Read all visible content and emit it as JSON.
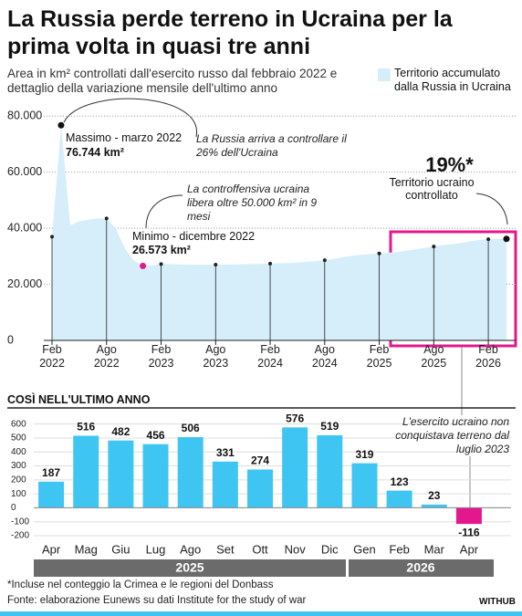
{
  "chart_data": [
    {
      "type": "area",
      "title": "La Russia perde terreno in Ucraina per la prima volta in quasi tre anni",
      "subtitle": "Area in km² controllati dall'esercito russo dal febbraio 2022 e dettaglio della variazione mensile dell'ultimo anno",
      "x": [
        "2022-02",
        "2022-03",
        "2022-04",
        "2022-05",
        "2022-06",
        "2022-07",
        "2022-08",
        "2022-09",
        "2022-10",
        "2022-11",
        "2022-12",
        "2023-01",
        "2023-02",
        "2023-03",
        "2023-04",
        "2023-05",
        "2023-06",
        "2023-07",
        "2023-08",
        "2023-09",
        "2023-10",
        "2023-11",
        "2023-12",
        "2024-01",
        "2024-02",
        "2024-03",
        "2024-04",
        "2024-05",
        "2024-06",
        "2024-07",
        "2024-08",
        "2024-09",
        "2024-10",
        "2024-11",
        "2024-12",
        "2025-01",
        "2025-02",
        "2025-03",
        "2025-04",
        "2025-05",
        "2025-06",
        "2025-07",
        "2025-08",
        "2025-09",
        "2025-10",
        "2025-11",
        "2025-12",
        "2026-01",
        "2026-02",
        "2026-03",
        "2026-04"
      ],
      "series": [
        {
          "name": "Territorio accumulato dalla Russia in Ucraina",
          "color": "#d5eefa",
          "values": [
            37000,
            76744,
            41000,
            42500,
            43000,
            43500,
            43500,
            40000,
            33000,
            28500,
            26573,
            26800,
            27200,
            27200,
            27100,
            27000,
            27000,
            27000,
            27000,
            27000,
            27100,
            27150,
            27200,
            27300,
            27400,
            27500,
            27600,
            27800,
            28000,
            28300,
            28600,
            29100,
            29700,
            30200,
            30500,
            30800,
            31000,
            31300,
            31500,
            32000,
            32500,
            33000,
            33500,
            34000,
            34300,
            34800,
            35300,
            35800,
            36100,
            36300,
            36200
          ],
          "value_labels": [
            null,
            "76.744 km²",
            null,
            null,
            null,
            null,
            null,
            null,
            null,
            null,
            "26.573 km²",
            null,
            null,
            null,
            null,
            null,
            null,
            null,
            null,
            null,
            null,
            null,
            null,
            null,
            null,
            null,
            null,
            null,
            null,
            null,
            null,
            null,
            null,
            null,
            null,
            null,
            null,
            null,
            null,
            null,
            null,
            null,
            null,
            null,
            null,
            null,
            null,
            null,
            null,
            null,
            null
          ]
        }
      ],
      "xlim": [
        "2022-02",
        "2026-04"
      ],
      "xticks": [
        {
          "value": "2022-02",
          "label": "Feb 2022"
        },
        {
          "value": "2022-08",
          "label": "Ago 2022"
        },
        {
          "value": "2023-02",
          "label": "Feb 2023"
        },
        {
          "value": "2023-08",
          "label": "Ago 2023"
        },
        {
          "value": "2024-02",
          "label": "Feb 2024"
        },
        {
          "value": "2024-08",
          "label": "Ago 2024"
        },
        {
          "value": "2025-02",
          "label": "Feb 2025"
        },
        {
          "value": "2025-08",
          "label": "Ago 2025"
        },
        {
          "value": "2026-02",
          "label": "Feb 2026"
        }
      ],
      "ylim": [
        0,
        83000
      ],
      "yticks": [
        0,
        {
          "value": 20000,
          "label": "20.000"
        },
        {
          "value": 40000,
          "label": "40.000"
        },
        {
          "value": 60000,
          "label": "60.000"
        },
        {
          "value": 80000,
          "label": "80.000"
        }
      ],
      "grid": true,
      "legend": "top-right",
      "annotations": [
        "Massimo - marzo 2022",
        "La Russia arriva a controllare il 26% dell'Ucraina",
        "La controffensiva ucraina libera oltre 50.000 km² in 9 mesi",
        "Minimo - dicembre 2022",
        "19%*",
        "Territorio ucraino controllato"
      ]
    },
    {
      "type": "bar",
      "title": "COSÌ NELL'ULTIMO ANNO",
      "categories": [
        "Apr",
        "Mag",
        "Giu",
        "Lug",
        "Ago",
        "Set",
        "Ott",
        "Nov",
        "Dic",
        "Gen",
        "Feb",
        "Mar",
        "Apr"
      ],
      "values": [
        187,
        516,
        482,
        456,
        506,
        331,
        274,
        576,
        519,
        319,
        123,
        23,
        -116
      ],
      "colors": [
        "#3ec5f2",
        "#3ec5f2",
        "#3ec5f2",
        "#3ec5f2",
        "#3ec5f2",
        "#3ec5f2",
        "#3ec5f2",
        "#3ec5f2",
        "#3ec5f2",
        "#3ec5f2",
        "#3ec5f2",
        "#3ec5f2",
        "#e3188d"
      ],
      "ylim": [
        -200,
        650
      ],
      "yticks": [
        -200,
        -100,
        0,
        100,
        200,
        300,
        400,
        500,
        600
      ],
      "grid": true,
      "year_labels": [
        "2025",
        "2026"
      ],
      "annotation": "L'esercito ucraino non conquistava terreno dal luglio 2023"
    }
  ],
  "footer": {
    "note": "*Incluse nel conteggio la Crimea e le regioni del Donbass",
    "source": "Fonte: elaborazione Eunews su dati Institute for the study of war",
    "brand": "WITHUB"
  }
}
